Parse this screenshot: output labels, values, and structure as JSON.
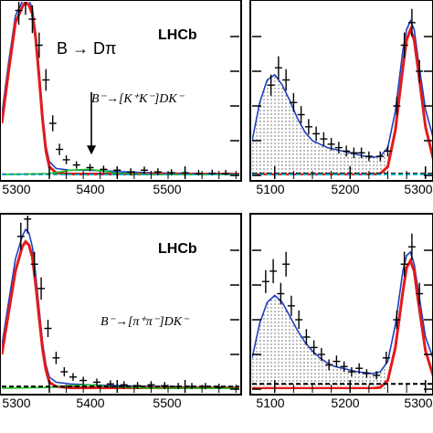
{
  "chart_data": [
    {
      "type": "line",
      "panel": "top-left",
      "title": "",
      "xlabel": "",
      "ylabel": "",
      "xlim": [
        5230,
        5580
      ],
      "ylim": [
        0,
        100
      ],
      "x_ticks": [
        5300,
        5400,
        5500
      ],
      "x_tick_labels": [
        "5300",
        "5400",
        "5500"
      ],
      "y_ticks": [
        0,
        20,
        40,
        60,
        80
      ],
      "experiment_label": "LHCb",
      "decay_label": "B⁻→[K⁺K⁻]DK⁻",
      "annotation": {
        "text": "B → Dπ",
        "arrow_x": 5362,
        "arrow_y_from": 48,
        "arrow_y_to": 12
      },
      "series": [
        {
          "color": "#1f3fbf",
          "style": "solid",
          "x": [
            5230,
            5240,
            5250,
            5260,
            5265,
            5270,
            5275,
            5280,
            5285,
            5290,
            5295,
            5300,
            5310,
            5330,
            5360,
            5400,
            5450,
            5500,
            5580
          ],
          "y": [
            35,
            65,
            92,
            100,
            102,
            101,
            96,
            82,
            60,
            36,
            17,
            8,
            4,
            3,
            3,
            2.2,
            1.5,
            1.2,
            1
          ]
        },
        {
          "color": "#e41a1c",
          "style": "solid",
          "x": [
            5230,
            5240,
            5250,
            5260,
            5265,
            5270,
            5275,
            5280,
            5285,
            5290,
            5295,
            5300,
            5310,
            5330,
            5580
          ],
          "y": [
            30,
            60,
            88,
            97,
            100,
            98,
            93,
            79,
            56,
            32,
            14,
            5,
            1.5,
            0.8,
            0.8
          ]
        },
        {
          "color": "#22c022",
          "style": "solid",
          "x": [
            5230,
            5300,
            5330,
            5360,
            5380,
            5400,
            5450,
            5580
          ],
          "y": [
            0.5,
            1,
            3,
            3.5,
            2.5,
            1.2,
            0.6,
            0.4
          ]
        },
        {
          "color": "#000000",
          "style": "dashed",
          "x": [
            5230,
            5580
          ],
          "y": [
            0.6,
            0.6
          ]
        },
        {
          "color": "#00bcd4",
          "style": "dashed",
          "x": [
            5230,
            5580
          ],
          "y": [
            0.4,
            0.4
          ]
        },
        {
          "color": "#000000",
          "style": "points",
          "x": [
            5255,
            5265,
            5275,
            5285,
            5295,
            5305,
            5315,
            5325,
            5340,
            5360,
            5380,
            5400,
            5420,
            5440,
            5460,
            5480,
            5500,
            5520,
            5540,
            5560
          ],
          "y": [
            95,
            101,
            90,
            75,
            55,
            30,
            15,
            9,
            6,
            4.5,
            3.5,
            3,
            2,
            3,
            2,
            1.5,
            1.5,
            1,
            1.2,
            1
          ]
        }
      ]
    },
    {
      "type": "line",
      "panel": "top-right",
      "title": "",
      "xlabel": "",
      "ylabel": "",
      "xlim": [
        5070,
        5310
      ],
      "ylim": [
        0,
        100
      ],
      "x_ticks": [
        5100,
        5200,
        5300
      ],
      "x_tick_labels": [
        "5100",
        "5200",
        "5300"
      ],
      "series": [
        {
          "color": "#1f3fbf",
          "style": "solid",
          "x": [
            5070,
            5080,
            5090,
            5100,
            5110,
            5120,
            5130,
            5140,
            5150,
            5160,
            5170,
            5180,
            5190,
            5200,
            5210,
            5220,
            5230,
            5240,
            5250,
            5260,
            5270,
            5275,
            5280,
            5285,
            5290,
            5300,
            5310
          ],
          "y": [
            20,
            42,
            55,
            58,
            52,
            43,
            33,
            25,
            20,
            18,
            16,
            15,
            14,
            13,
            12,
            11,
            10.5,
            11,
            16,
            37,
            72,
            84,
            89,
            84,
            68,
            38,
            22
          ]
        },
        {
          "color": "#e41a1c",
          "style": "solid",
          "x": [
            5070,
            5230,
            5240,
            5250,
            5260,
            5270,
            5275,
            5280,
            5285,
            5290,
            5300,
            5310
          ],
          "y": [
            0.5,
            0.5,
            1,
            5,
            26,
            62,
            78,
            84,
            78,
            62,
            28,
            10
          ]
        },
        {
          "color": "#000000",
          "style": "dashed",
          "x": [
            5070,
            5310
          ],
          "y": [
            1,
            1
          ]
        },
        {
          "color": "#00bcd4",
          "style": "dashed",
          "x": [
            5070,
            5310
          ],
          "y": [
            0.5,
            0.5
          ]
        },
        {
          "color": "#000000",
          "style": "points",
          "x": [
            5095,
            5105,
            5115,
            5125,
            5135,
            5145,
            5155,
            5165,
            5175,
            5185,
            5195,
            5205,
            5215,
            5225,
            5240,
            5250,
            5262,
            5272,
            5282,
            5292
          ],
          "y": [
            52,
            62,
            55,
            42,
            35,
            28,
            24,
            21,
            18,
            16,
            14,
            13,
            13,
            11,
            11,
            14,
            40,
            75,
            88,
            60
          ]
        }
      ]
    },
    {
      "type": "line",
      "panel": "bottom-left",
      "title": "",
      "xlabel": "",
      "ylabel": "",
      "xlim": [
        5230,
        5580
      ],
      "ylim": [
        0,
        100
      ],
      "x_ticks": [
        5300,
        5400,
        5500
      ],
      "x_tick_labels": [
        "5300",
        "5400",
        "5500"
      ],
      "experiment_label": "LHCb",
      "decay_label": "B⁻→[π⁺π⁻]DK⁻",
      "series": [
        {
          "color": "#1f3fbf",
          "style": "solid",
          "x": [
            5230,
            5240,
            5250,
            5260,
            5265,
            5270,
            5275,
            5280,
            5285,
            5290,
            5295,
            5300,
            5310,
            5330,
            5360,
            5400,
            5450,
            5500,
            5580
          ],
          "y": [
            25,
            50,
            75,
            88,
            92,
            90,
            82,
            66,
            46,
            27,
            14,
            7,
            4,
            3,
            2.5,
            2,
            1.5,
            1.2,
            1
          ]
        },
        {
          "color": "#e41a1c",
          "style": "solid",
          "x": [
            5230,
            5240,
            5250,
            5260,
            5265,
            5270,
            5275,
            5280,
            5285,
            5290,
            5295,
            5300,
            5310,
            5330,
            5580
          ],
          "y": [
            20,
            44,
            68,
            82,
            85,
            83,
            76,
            60,
            41,
            23,
            11,
            4,
            1.5,
            0.8,
            0.8
          ]
        },
        {
          "color": "#22c022",
          "style": "solid",
          "x": [
            5230,
            5300,
            5330,
            5360,
            5400,
            5450,
            5580
          ],
          "y": [
            0.5,
            1,
            2,
            2.5,
            1.2,
            0.6,
            0.4
          ]
        },
        {
          "color": "#000000",
          "style": "dashed",
          "x": [
            5230,
            5580
          ],
          "y": [
            1.5,
            1.5
          ]
        },
        {
          "color": "#000000",
          "style": "points",
          "x": [
            5258,
            5268,
            5278,
            5288,
            5298,
            5310,
            5322,
            5335,
            5350,
            5370,
            5390,
            5410,
            5430,
            5450,
            5470,
            5490,
            5510,
            5530,
            5550
          ],
          "y": [
            88,
            98,
            72,
            58,
            35,
            18,
            10,
            7,
            5,
            4,
            3,
            2.5,
            2,
            2.5,
            2,
            1.5,
            1.5,
            1.5,
            1
          ]
        }
      ]
    },
    {
      "type": "line",
      "panel": "bottom-right",
      "title": "",
      "xlabel": "",
      "ylabel": "",
      "xlim": [
        5070,
        5310
      ],
      "ylim": [
        0,
        100
      ],
      "x_ticks": [
        5100,
        5200,
        5300
      ],
      "x_tick_labels": [
        "5100",
        "5200",
        "5300"
      ],
      "series": [
        {
          "color": "#1f3fbf",
          "style": "solid",
          "x": [
            5070,
            5080,
            5090,
            5100,
            5110,
            5120,
            5130,
            5140,
            5150,
            5160,
            5170,
            5180,
            5190,
            5200,
            5210,
            5220,
            5230,
            5240,
            5250,
            5260,
            5270,
            5275,
            5280,
            5285,
            5290,
            5300,
            5310
          ],
          "y": [
            18,
            38,
            50,
            54,
            50,
            42,
            34,
            27,
            22,
            18,
            15,
            13,
            12,
            11,
            10,
            9.5,
            9,
            10,
            16,
            37,
            68,
            77,
            79,
            72,
            58,
            30,
            18
          ]
        },
        {
          "color": "#e41a1c",
          "style": "solid",
          "x": [
            5070,
            5230,
            5240,
            5250,
            5260,
            5270,
            5275,
            5280,
            5285,
            5290,
            5300,
            5310
          ],
          "y": [
            0.5,
            0.5,
            1,
            5,
            24,
            56,
            70,
            74,
            68,
            52,
            22,
            8
          ]
        },
        {
          "color": "#000000",
          "style": "dashed",
          "x": [
            5070,
            5310
          ],
          "y": [
            3,
            3
          ]
        },
        {
          "color": "#000000",
          "style": "points",
          "x": [
            5088,
            5098,
            5108,
            5115,
            5122,
            5132,
            5142,
            5152,
            5162,
            5172,
            5182,
            5192,
            5202,
            5212,
            5222,
            5235,
            5248,
            5262,
            5272,
            5282,
            5292
          ],
          "y": [
            62,
            68,
            55,
            72,
            48,
            40,
            30,
            24,
            20,
            14,
            16,
            13,
            10,
            12,
            9,
            8,
            18,
            40,
            72,
            82,
            55
          ]
        }
      ]
    }
  ]
}
